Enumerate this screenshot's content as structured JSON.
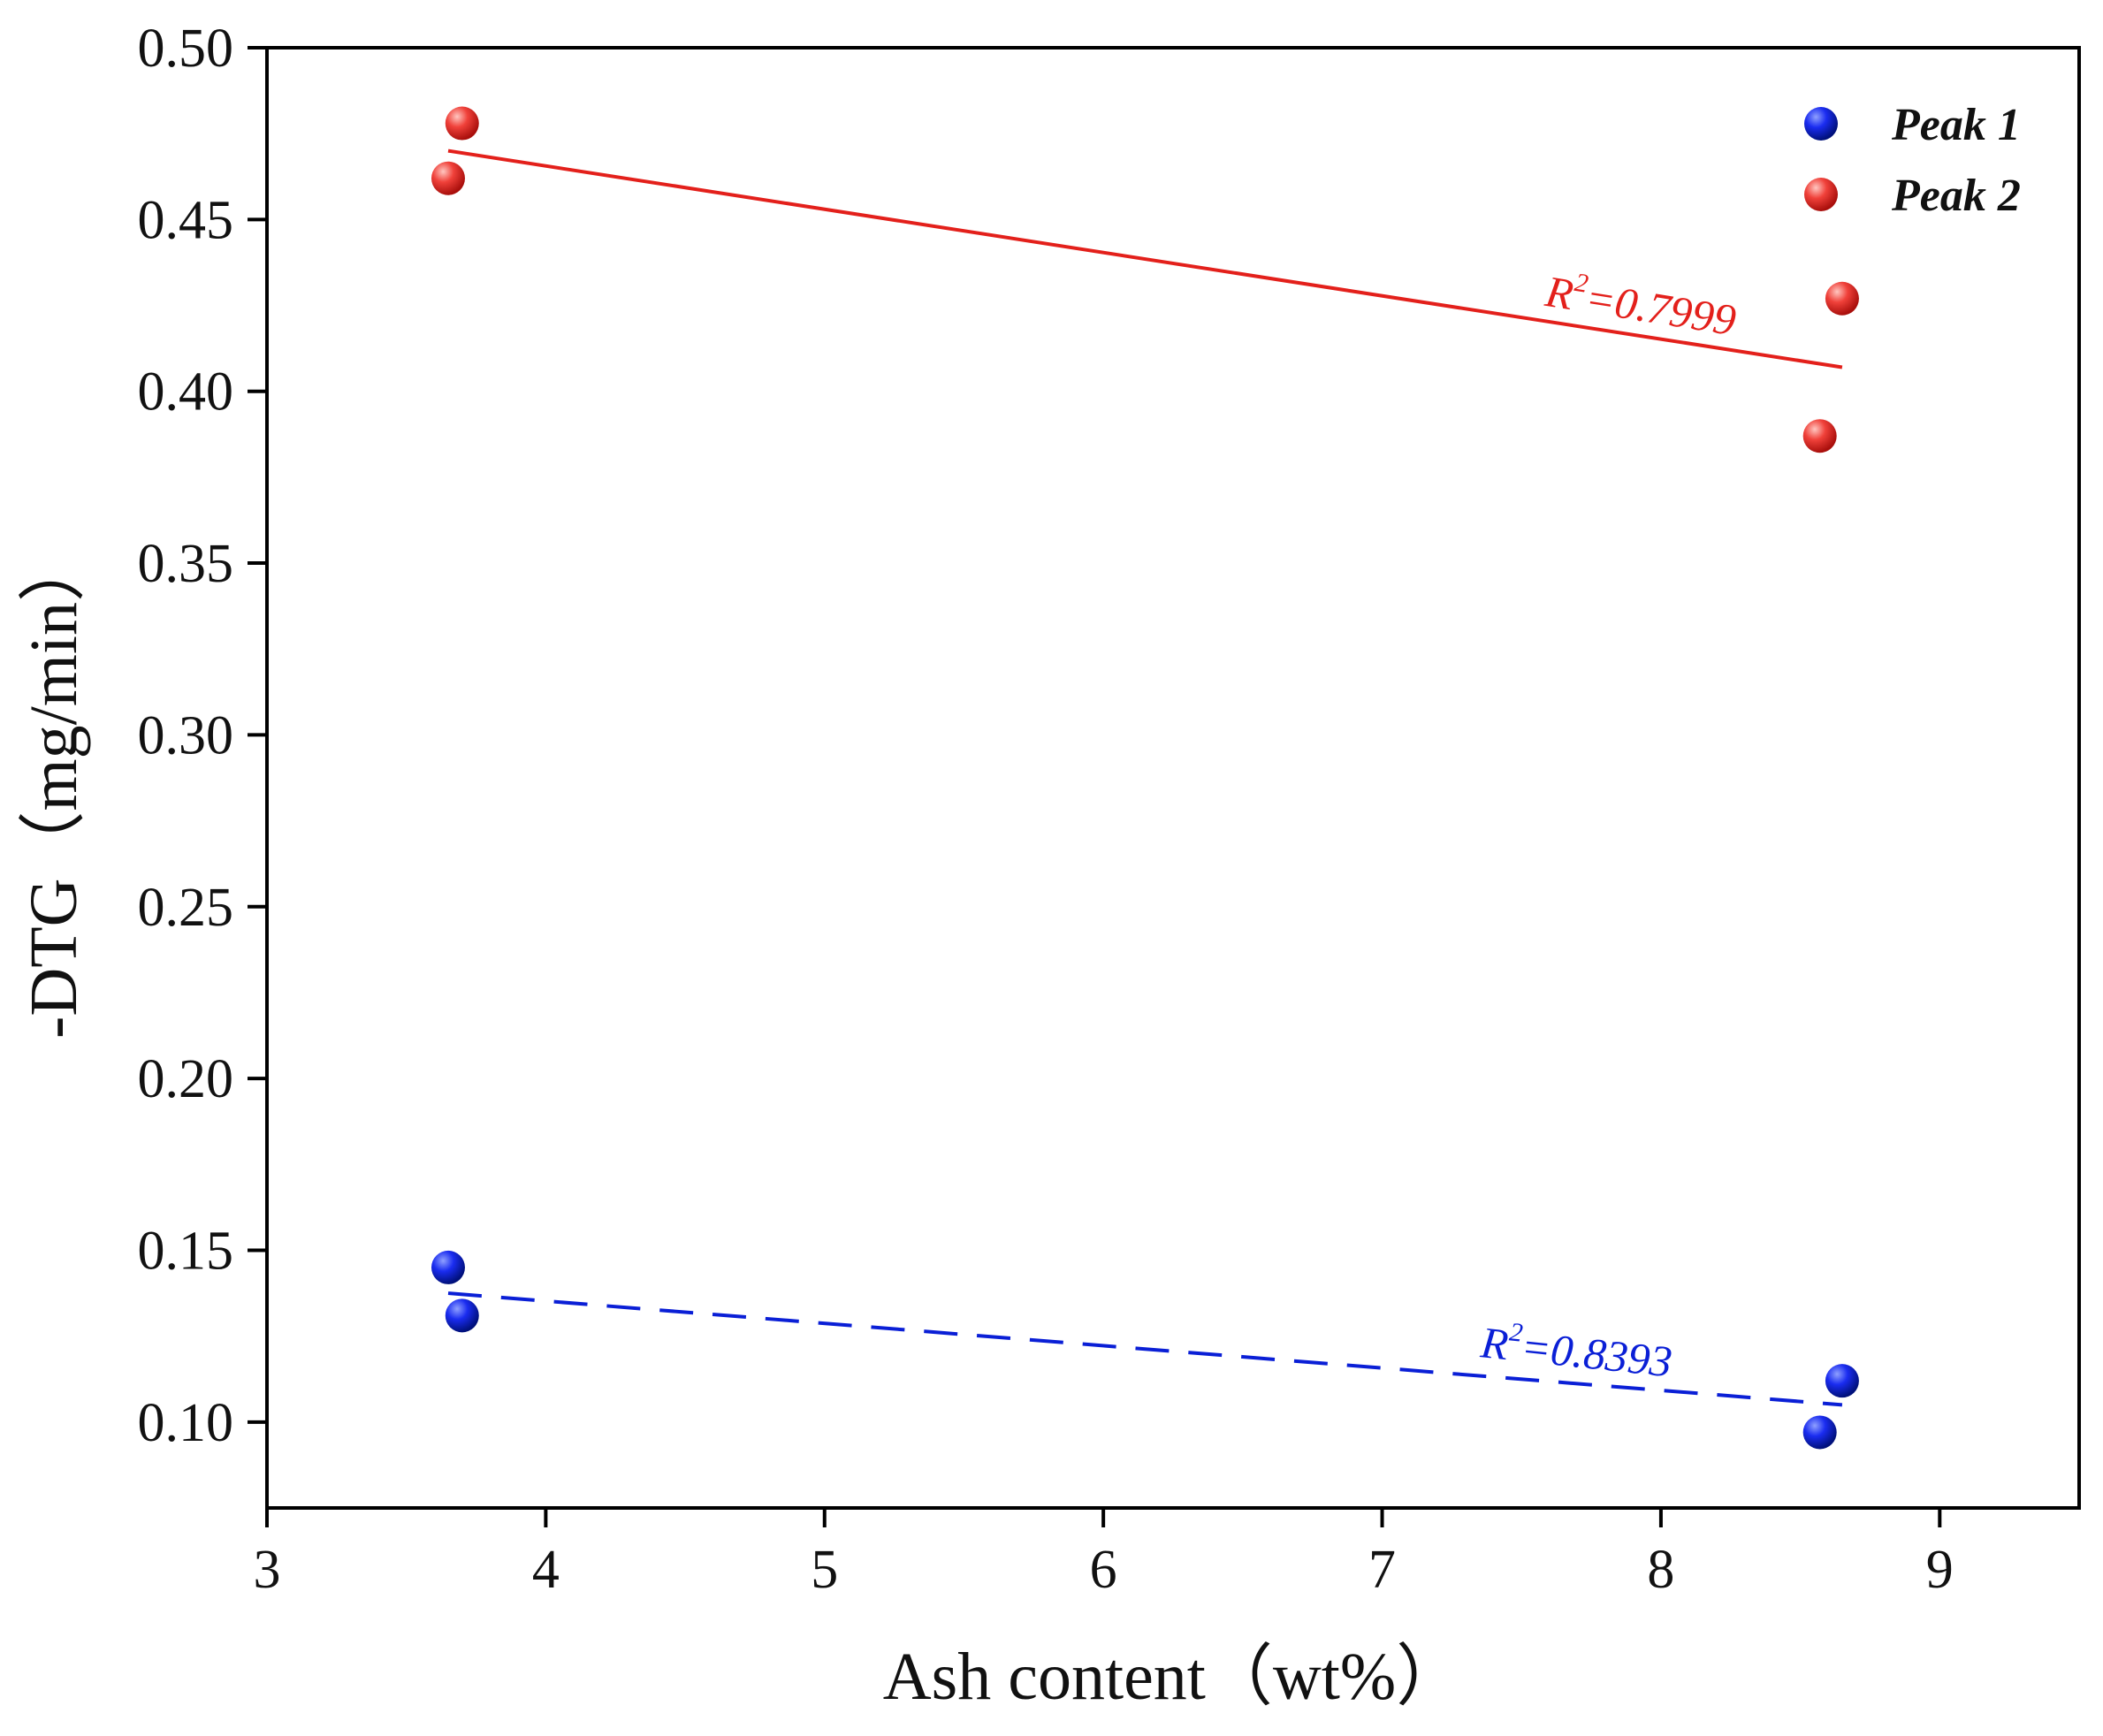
{
  "chart_data": {
    "type": "scatter",
    "title": "",
    "xlabel": "Ash content（wt%）",
    "ylabel": "-DTG（mg/min）",
    "xlim": [
      3,
      9.5
    ],
    "ylim": [
      0.075,
      0.5
    ],
    "xticks": [
      "3",
      "4",
      "5",
      "6",
      "7",
      "8",
      "9"
    ],
    "yticks": [
      "0.10",
      "0.15",
      "0.20",
      "0.25",
      "0.30",
      "0.35",
      "0.40",
      "0.45",
      "0.50"
    ],
    "grid": false,
    "legend_position": "top-right",
    "series": [
      {
        "name": "Peak 1",
        "color": "#0a1fd6",
        "points": [
          {
            "x": 3.65,
            "y": 0.145
          },
          {
            "x": 3.7,
            "y": 0.131
          },
          {
            "x": 8.57,
            "y": 0.097
          },
          {
            "x": 8.65,
            "y": 0.112
          }
        ],
        "fit": {
          "style": "dashed",
          "x": [
            3.65,
            8.65
          ],
          "y": [
            0.1375,
            0.105
          ],
          "r2_label": "R",
          "r2_sup": "2",
          "r2_value": "=0.8393",
          "label_x": 7.35,
          "label_y": 0.119,
          "label_rotate": 6
        }
      },
      {
        "name": "Peak 2",
        "color": "#e3201b",
        "points": [
          {
            "x": 3.65,
            "y": 0.462
          },
          {
            "x": 3.7,
            "y": 0.478
          },
          {
            "x": 8.57,
            "y": 0.387
          },
          {
            "x": 8.65,
            "y": 0.427
          }
        ],
        "fit": {
          "style": "solid",
          "x": [
            3.65,
            8.65
          ],
          "y": [
            0.47,
            0.407
          ],
          "r2_label": "R",
          "r2_sup": "2",
          "r2_value": "=0.7999",
          "label_x": 7.58,
          "label_y": 0.425,
          "label_rotate": 9
        }
      }
    ]
  }
}
